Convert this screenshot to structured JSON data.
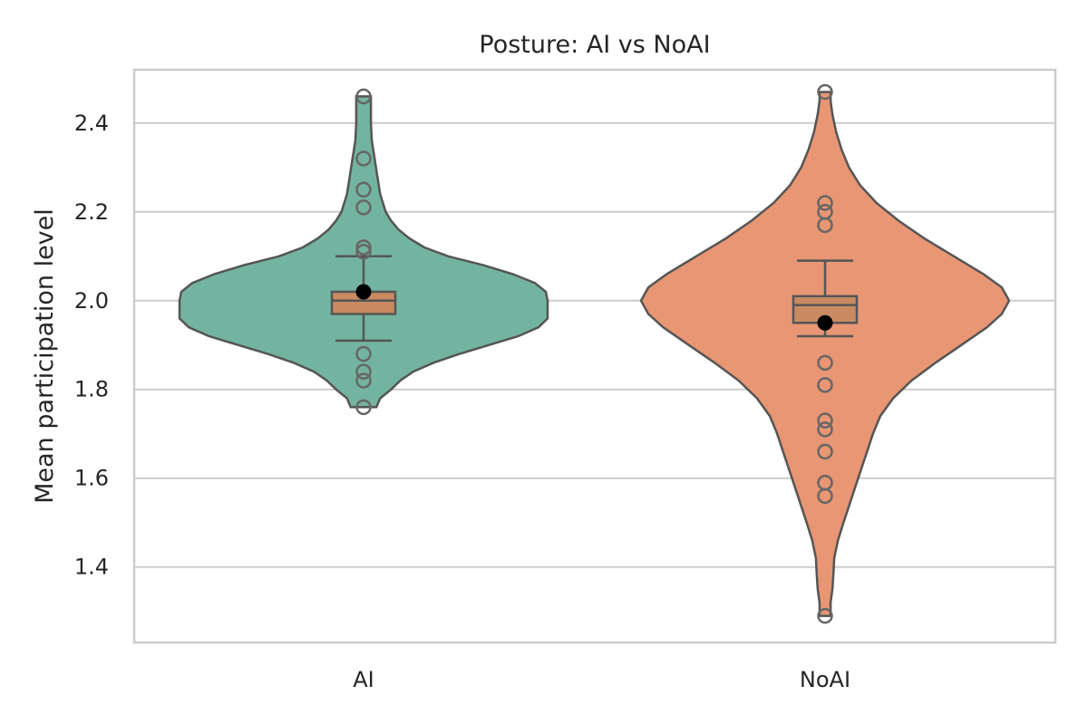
{
  "chart_data": {
    "type": "violin",
    "title": "Posture: AI vs NoAI",
    "xlabel": "",
    "ylabel": "Mean participation level",
    "ylim": [
      1.23,
      2.52
    ],
    "yticks": [
      1.4,
      1.6,
      1.8,
      2.0,
      2.2,
      2.4
    ],
    "ytick_labels": [
      "1.4",
      "1.6",
      "1.8",
      "2.0",
      "2.2",
      "2.4"
    ],
    "grid": "horizontal",
    "categories": [
      "AI",
      "NoAI"
    ],
    "groups": [
      {
        "name": "AI",
        "violin_color": "#73b4a0",
        "box_color": "#c98a62",
        "range": [
          1.76,
          2.46
        ],
        "box": {
          "q1": 1.97,
          "median": 2.0,
          "q3": 2.02,
          "whisker_low": 1.91,
          "whisker_high": 2.1
        },
        "mean": 2.02,
        "outliers": [
          2.46,
          2.32,
          2.25,
          2.21,
          2.12,
          2.11,
          1.88,
          1.84,
          1.82,
          1.76
        ],
        "density": [
          [
            1.76,
            0.07
          ],
          [
            1.78,
            0.09
          ],
          [
            1.8,
            0.15
          ],
          [
            1.82,
            0.2
          ],
          [
            1.84,
            0.27
          ],
          [
            1.86,
            0.38
          ],
          [
            1.88,
            0.52
          ],
          [
            1.9,
            0.68
          ],
          [
            1.92,
            0.84
          ],
          [
            1.94,
            0.95
          ],
          [
            1.96,
            1.0
          ],
          [
            1.98,
            1.0
          ],
          [
            2.0,
            1.0
          ],
          [
            2.02,
            0.99
          ],
          [
            2.04,
            0.93
          ],
          [
            2.06,
            0.81
          ],
          [
            2.08,
            0.65
          ],
          [
            2.1,
            0.46
          ],
          [
            2.12,
            0.33
          ],
          [
            2.14,
            0.25
          ],
          [
            2.16,
            0.19
          ],
          [
            2.18,
            0.15
          ],
          [
            2.2,
            0.12
          ],
          [
            2.24,
            0.09
          ],
          [
            2.28,
            0.075
          ],
          [
            2.32,
            0.06
          ],
          [
            2.36,
            0.045
          ],
          [
            2.4,
            0.04
          ],
          [
            2.44,
            0.04
          ],
          [
            2.46,
            0.04
          ]
        ]
      },
      {
        "name": "NoAI",
        "violin_color": "#e89674",
        "box_color": "#c98a62",
        "range": [
          1.29,
          2.47
        ],
        "box": {
          "q1": 1.95,
          "median": 1.99,
          "q3": 2.01,
          "whisker_low": 1.92,
          "whisker_high": 2.09
        },
        "mean": 1.95,
        "outliers": [
          2.47,
          2.22,
          2.2,
          2.17,
          1.86,
          1.81,
          1.73,
          1.71,
          1.66,
          1.59,
          1.56,
          1.29
        ],
        "density": [
          [
            1.29,
            0.03
          ],
          [
            1.32,
            0.03
          ],
          [
            1.35,
            0.04
          ],
          [
            1.38,
            0.045
          ],
          [
            1.42,
            0.05
          ],
          [
            1.46,
            0.07
          ],
          [
            1.5,
            0.1
          ],
          [
            1.55,
            0.14
          ],
          [
            1.6,
            0.18
          ],
          [
            1.65,
            0.22
          ],
          [
            1.7,
            0.26
          ],
          [
            1.74,
            0.3
          ],
          [
            1.78,
            0.37
          ],
          [
            1.82,
            0.47
          ],
          [
            1.86,
            0.6
          ],
          [
            1.9,
            0.74
          ],
          [
            1.94,
            0.88
          ],
          [
            1.97,
            0.96
          ],
          [
            2.0,
            1.0
          ],
          [
            2.03,
            0.96
          ],
          [
            2.06,
            0.86
          ],
          [
            2.1,
            0.7
          ],
          [
            2.14,
            0.54
          ],
          [
            2.18,
            0.4
          ],
          [
            2.22,
            0.28
          ],
          [
            2.26,
            0.19
          ],
          [
            2.3,
            0.13
          ],
          [
            2.34,
            0.09
          ],
          [
            2.38,
            0.06
          ],
          [
            2.42,
            0.04
          ],
          [
            2.45,
            0.03
          ],
          [
            2.47,
            0.03
          ]
        ]
      }
    ]
  }
}
